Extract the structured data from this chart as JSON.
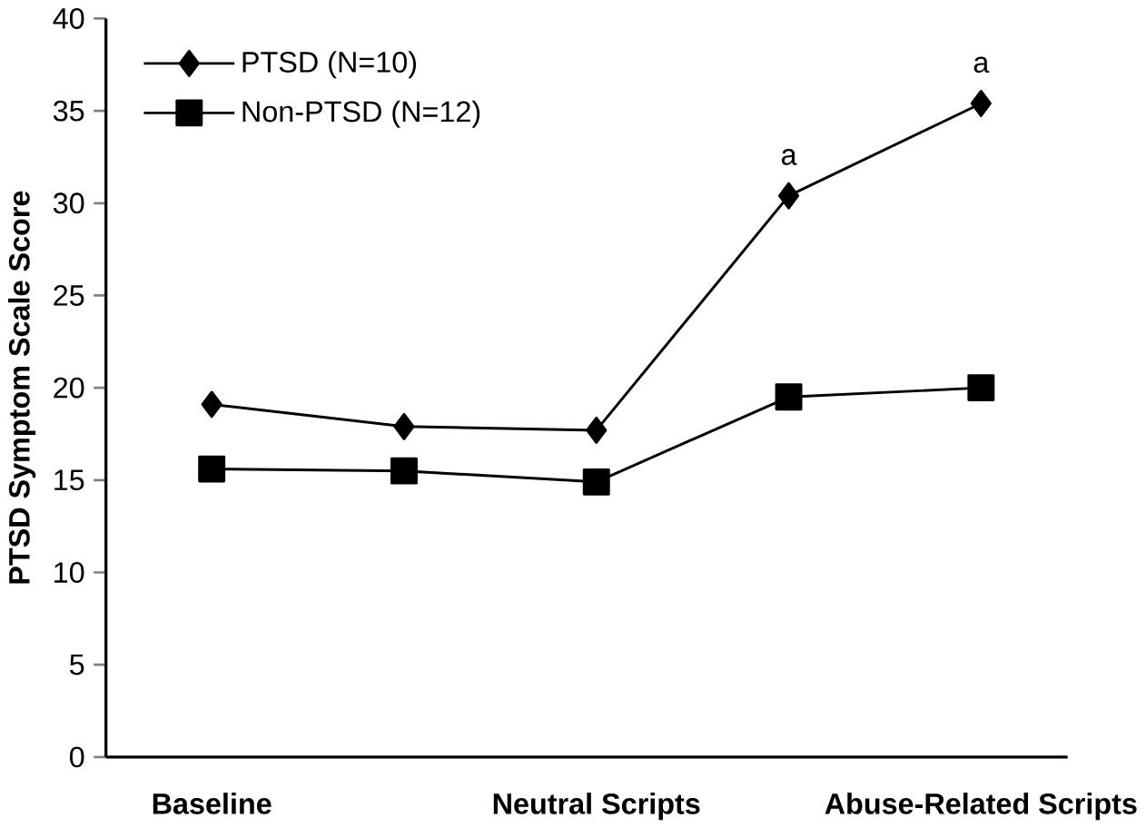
{
  "chart_data": {
    "type": "line",
    "ylabel": "PTSD Symptom Scale Score",
    "categories": [
      "Baseline",
      null,
      "Neutral Scripts",
      null,
      "Abuse-Related Scripts"
    ],
    "ylim": [
      0,
      40
    ],
    "yticks": [
      0,
      5,
      10,
      15,
      20,
      25,
      30,
      35,
      40
    ],
    "series": [
      {
        "name": "PTSD (N=10)",
        "color": "#000000",
        "marker": "diamond",
        "values": [
          19.1,
          17.9,
          17.7,
          30.4,
          35.4
        ]
      },
      {
        "name": "Non-PTSD (N=12)",
        "color": "#000000",
        "marker": "square",
        "values": [
          15.6,
          15.5,
          14.9,
          19.5,
          20.0
        ]
      }
    ],
    "annotations": [
      {
        "text": "a",
        "y": 30.4
      },
      {
        "text": "a",
        "x": "Abuse-Related Scripts",
        "y": 35.4
      }
    ],
    "legend": "top left",
    "grid": false,
    "line_style": "solid"
  }
}
